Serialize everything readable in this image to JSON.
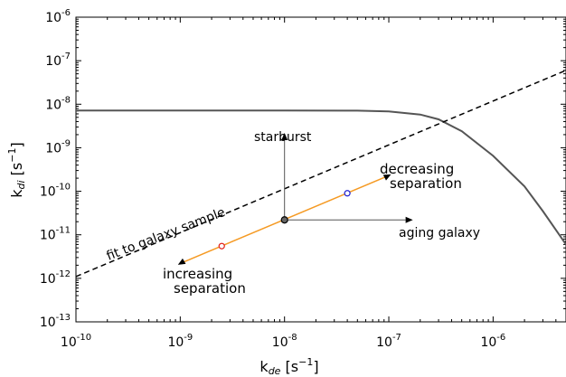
{
  "chart_data": {
    "type": "line",
    "x_scale": "log",
    "y_scale": "log",
    "xlim": [
      1e-10,
      5e-06
    ],
    "ylim": [
      1e-13,
      1e-06
    ],
    "grid": false,
    "xlabel": {
      "base": "k",
      "sub": "de",
      "unit": " [s",
      "exp": "−1",
      "close": "]"
    },
    "ylabel": {
      "base": "k",
      "sub": "di",
      "unit": " [s",
      "exp": "−1",
      "close": "]"
    },
    "x_ticks": [
      {
        "value": 1e-10,
        "base": "10",
        "exp": "-10"
      },
      {
        "value": 1e-09,
        "base": "10",
        "exp": "-9"
      },
      {
        "value": 1e-08,
        "base": "10",
        "exp": "-8"
      },
      {
        "value": 1e-07,
        "base": "10",
        "exp": "-7"
      },
      {
        "value": 1e-06,
        "base": "10",
        "exp": "-6"
      }
    ],
    "y_ticks": [
      {
        "value": 1e-13,
        "base": "10",
        "exp": "-13"
      },
      {
        "value": 1e-12,
        "base": "10",
        "exp": "-12"
      },
      {
        "value": 1e-11,
        "base": "10",
        "exp": "-11"
      },
      {
        "value": 1e-10,
        "base": "10",
        "exp": "-10"
      },
      {
        "value": 1e-09,
        "base": "10",
        "exp": "-9"
      },
      {
        "value": 1e-08,
        "base": "10",
        "exp": "-8"
      },
      {
        "value": 1e-07,
        "base": "10",
        "exp": "-7"
      },
      {
        "value": 1e-06,
        "base": "10",
        "exp": "-6"
      }
    ],
    "series": [
      {
        "style": "solid",
        "color": "#555555",
        "x": [
          1e-10,
          1e-09,
          1e-08,
          5e-08,
          1e-07,
          2e-07,
          3e-07,
          5e-07,
          1e-06,
          2e-06,
          3e-06,
          5e-06
        ],
        "y": [
          7.2e-09,
          7.2e-09,
          7.2e-09,
          7.1e-09,
          6.8e-09,
          5.8e-09,
          4.5e-09,
          2.4e-09,
          6.5e-10,
          1.3e-10,
          3.5e-11,
          6e-12
        ]
      },
      {
        "name": "fit to galaxy sample",
        "style": "dashed",
        "color": "#000000",
        "x": [
          1e-10,
          5e-06
        ],
        "y": [
          1.1e-12,
          6e-08
        ]
      },
      {
        "style": "solid",
        "color": "#f59a23",
        "x": [
          1e-09,
          1e-07
        ],
        "y": [
          2.2e-12,
          2.3e-10
        ]
      }
    ],
    "points": [
      {
        "x": 1e-08,
        "y": 2.2e-11,
        "fill": "#666666",
        "stroke": "#000000"
      },
      {
        "x": 2.5e-09,
        "y": 5.5e-12,
        "fill": "#ffffff",
        "stroke": "#e0201b"
      },
      {
        "x": 4e-08,
        "y": 9e-11,
        "fill": "#ffffff",
        "stroke": "#1f1fd0"
      }
    ],
    "arrows": [
      {
        "x1": 1e-08,
        "y1": 2.2e-11,
        "x2": 1e-08,
        "y2": 2.2e-09,
        "color": "#555555"
      },
      {
        "x1": 1e-08,
        "y1": 2.2e-11,
        "x2": 1.7e-07,
        "y2": 2.2e-11,
        "color": "#555555"
      },
      {
        "x1": 1e-09,
        "y1": 2.2e-12,
        "x2": 9.5e-10,
        "y2": 2.05e-12,
        "color": "#000000"
      },
      {
        "x1": 9.8e-08,
        "y1": 2.25e-10,
        "x2": 1.05e-07,
        "y2": 2.45e-10,
        "color": "#000000"
      }
    ],
    "annotations": {
      "starburst": "starburst",
      "aging": "aging galaxy",
      "fit": "fit to galaxy sample",
      "decreasing_1": "decreasing",
      "decreasing_2": "separation",
      "increasing_1": "increasing",
      "increasing_2": "separation"
    }
  }
}
